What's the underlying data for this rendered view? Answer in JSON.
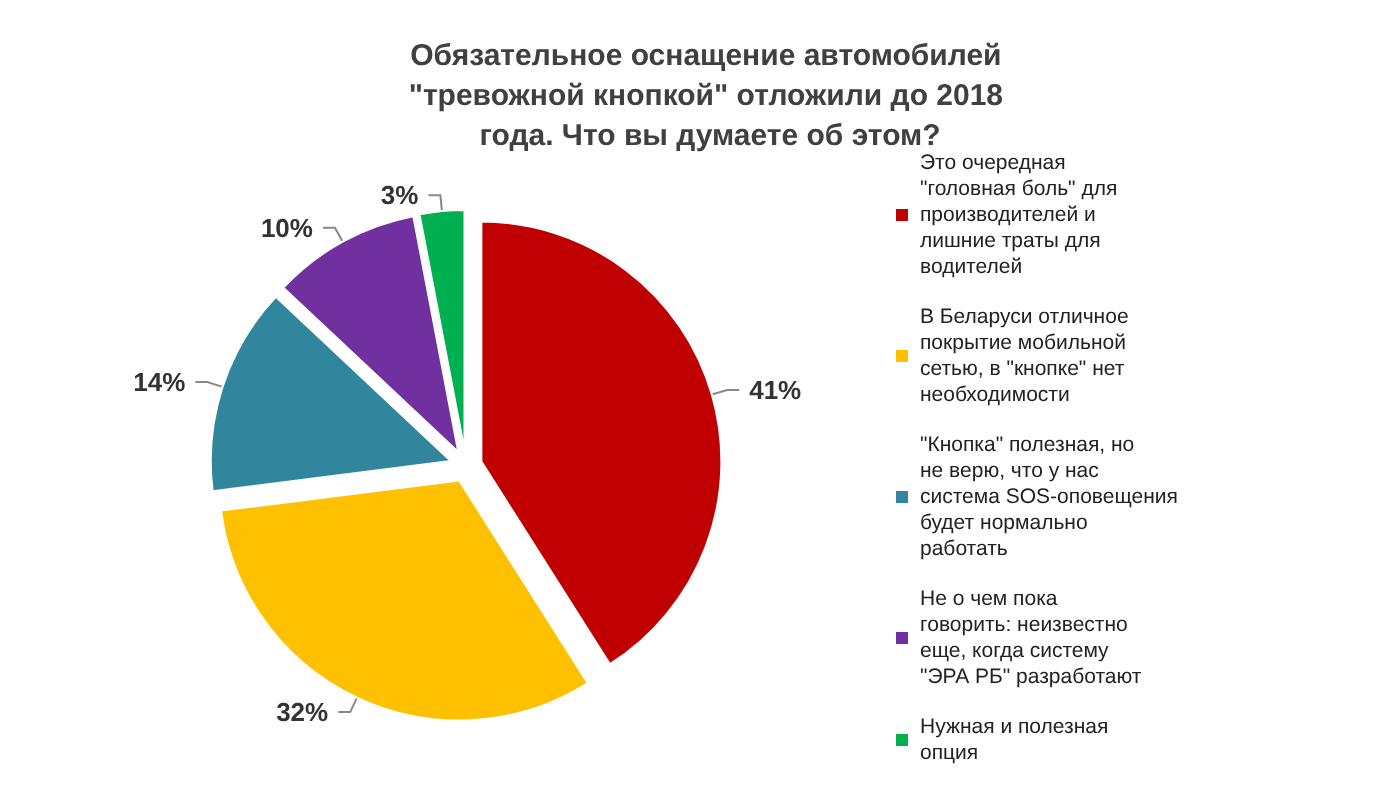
{
  "chart_data": {
    "type": "pie",
    "title": "Обязательное оснащение автомобилей \"тревожной кнопкой\" отложили до 2018 года. Что вы думаете об этом?",
    "categories": [
      "Это очередная \"головная боль\" для производителей и лишние траты для водителей",
      "В Беларуси отличное покрытие мобильной сетью, в \"кнопке\" нет необходимости",
      "\"Кнопка\" полезная, но не верю, что у нас система SOS-оповещения будет нормально работать",
      "Не о чем пока говорить: неизвестно еще, когда систему \"ЭРА РБ\" разработают",
      "Нужная и полезная опция"
    ],
    "values": [
      41,
      32,
      14,
      10,
      3
    ],
    "colors": [
      "#c00000",
      "#ffc000",
      "#31859c",
      "#7030a0",
      "#00b050"
    ],
    "value_labels": [
      "41%",
      "32%",
      "14%",
      "10%",
      "3%"
    ],
    "legend": "right"
  }
}
